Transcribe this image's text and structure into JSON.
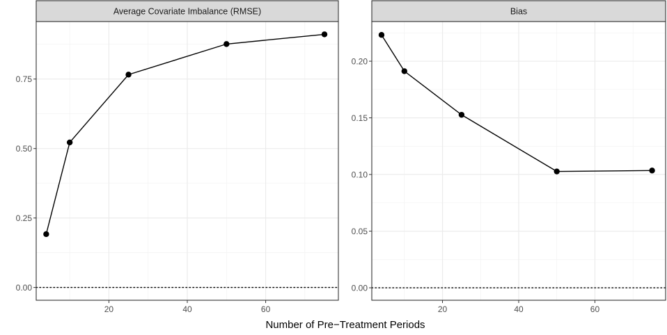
{
  "figure": {
    "xlabel": "Number of Pre−Treatment Periods"
  },
  "chart_data": [
    {
      "type": "line",
      "title": "Average Covariate Imbalance (RMSE)",
      "x": [
        4,
        10,
        25,
        50,
        75
      ],
      "values": [
        0.192,
        0.522,
        0.766,
        0.876,
        0.911
      ],
      "xlim": [
        1.45,
        78.55
      ],
      "ylim": [
        -0.046,
        0.957
      ],
      "xticks": [
        20,
        40,
        60
      ],
      "xtick_labels": [
        "20",
        "40",
        "60"
      ],
      "yticks": [
        0,
        0.25,
        0.5,
        0.75
      ],
      "ytick_labels": [
        "0.00",
        "0.25",
        "0.50",
        "0.75"
      ],
      "reference_line": 0,
      "grid": true
    },
    {
      "type": "line",
      "title": "Bias",
      "x": [
        4,
        10,
        25,
        50,
        75
      ],
      "values": [
        0.2232,
        0.1912,
        0.1527,
        0.1027,
        0.1035
      ],
      "xlim": [
        1.45,
        78.55
      ],
      "ylim": [
        -0.011,
        0.235
      ],
      "xticks": [
        20,
        40,
        60
      ],
      "xtick_labels": [
        "20",
        "40",
        "60"
      ],
      "yticks": [
        0,
        0.05,
        0.1,
        0.15,
        0.2
      ],
      "ytick_labels": [
        "0.00",
        "0.05",
        "0.10",
        "0.15",
        "0.20"
      ],
      "reference_line": 0,
      "grid": true
    }
  ]
}
